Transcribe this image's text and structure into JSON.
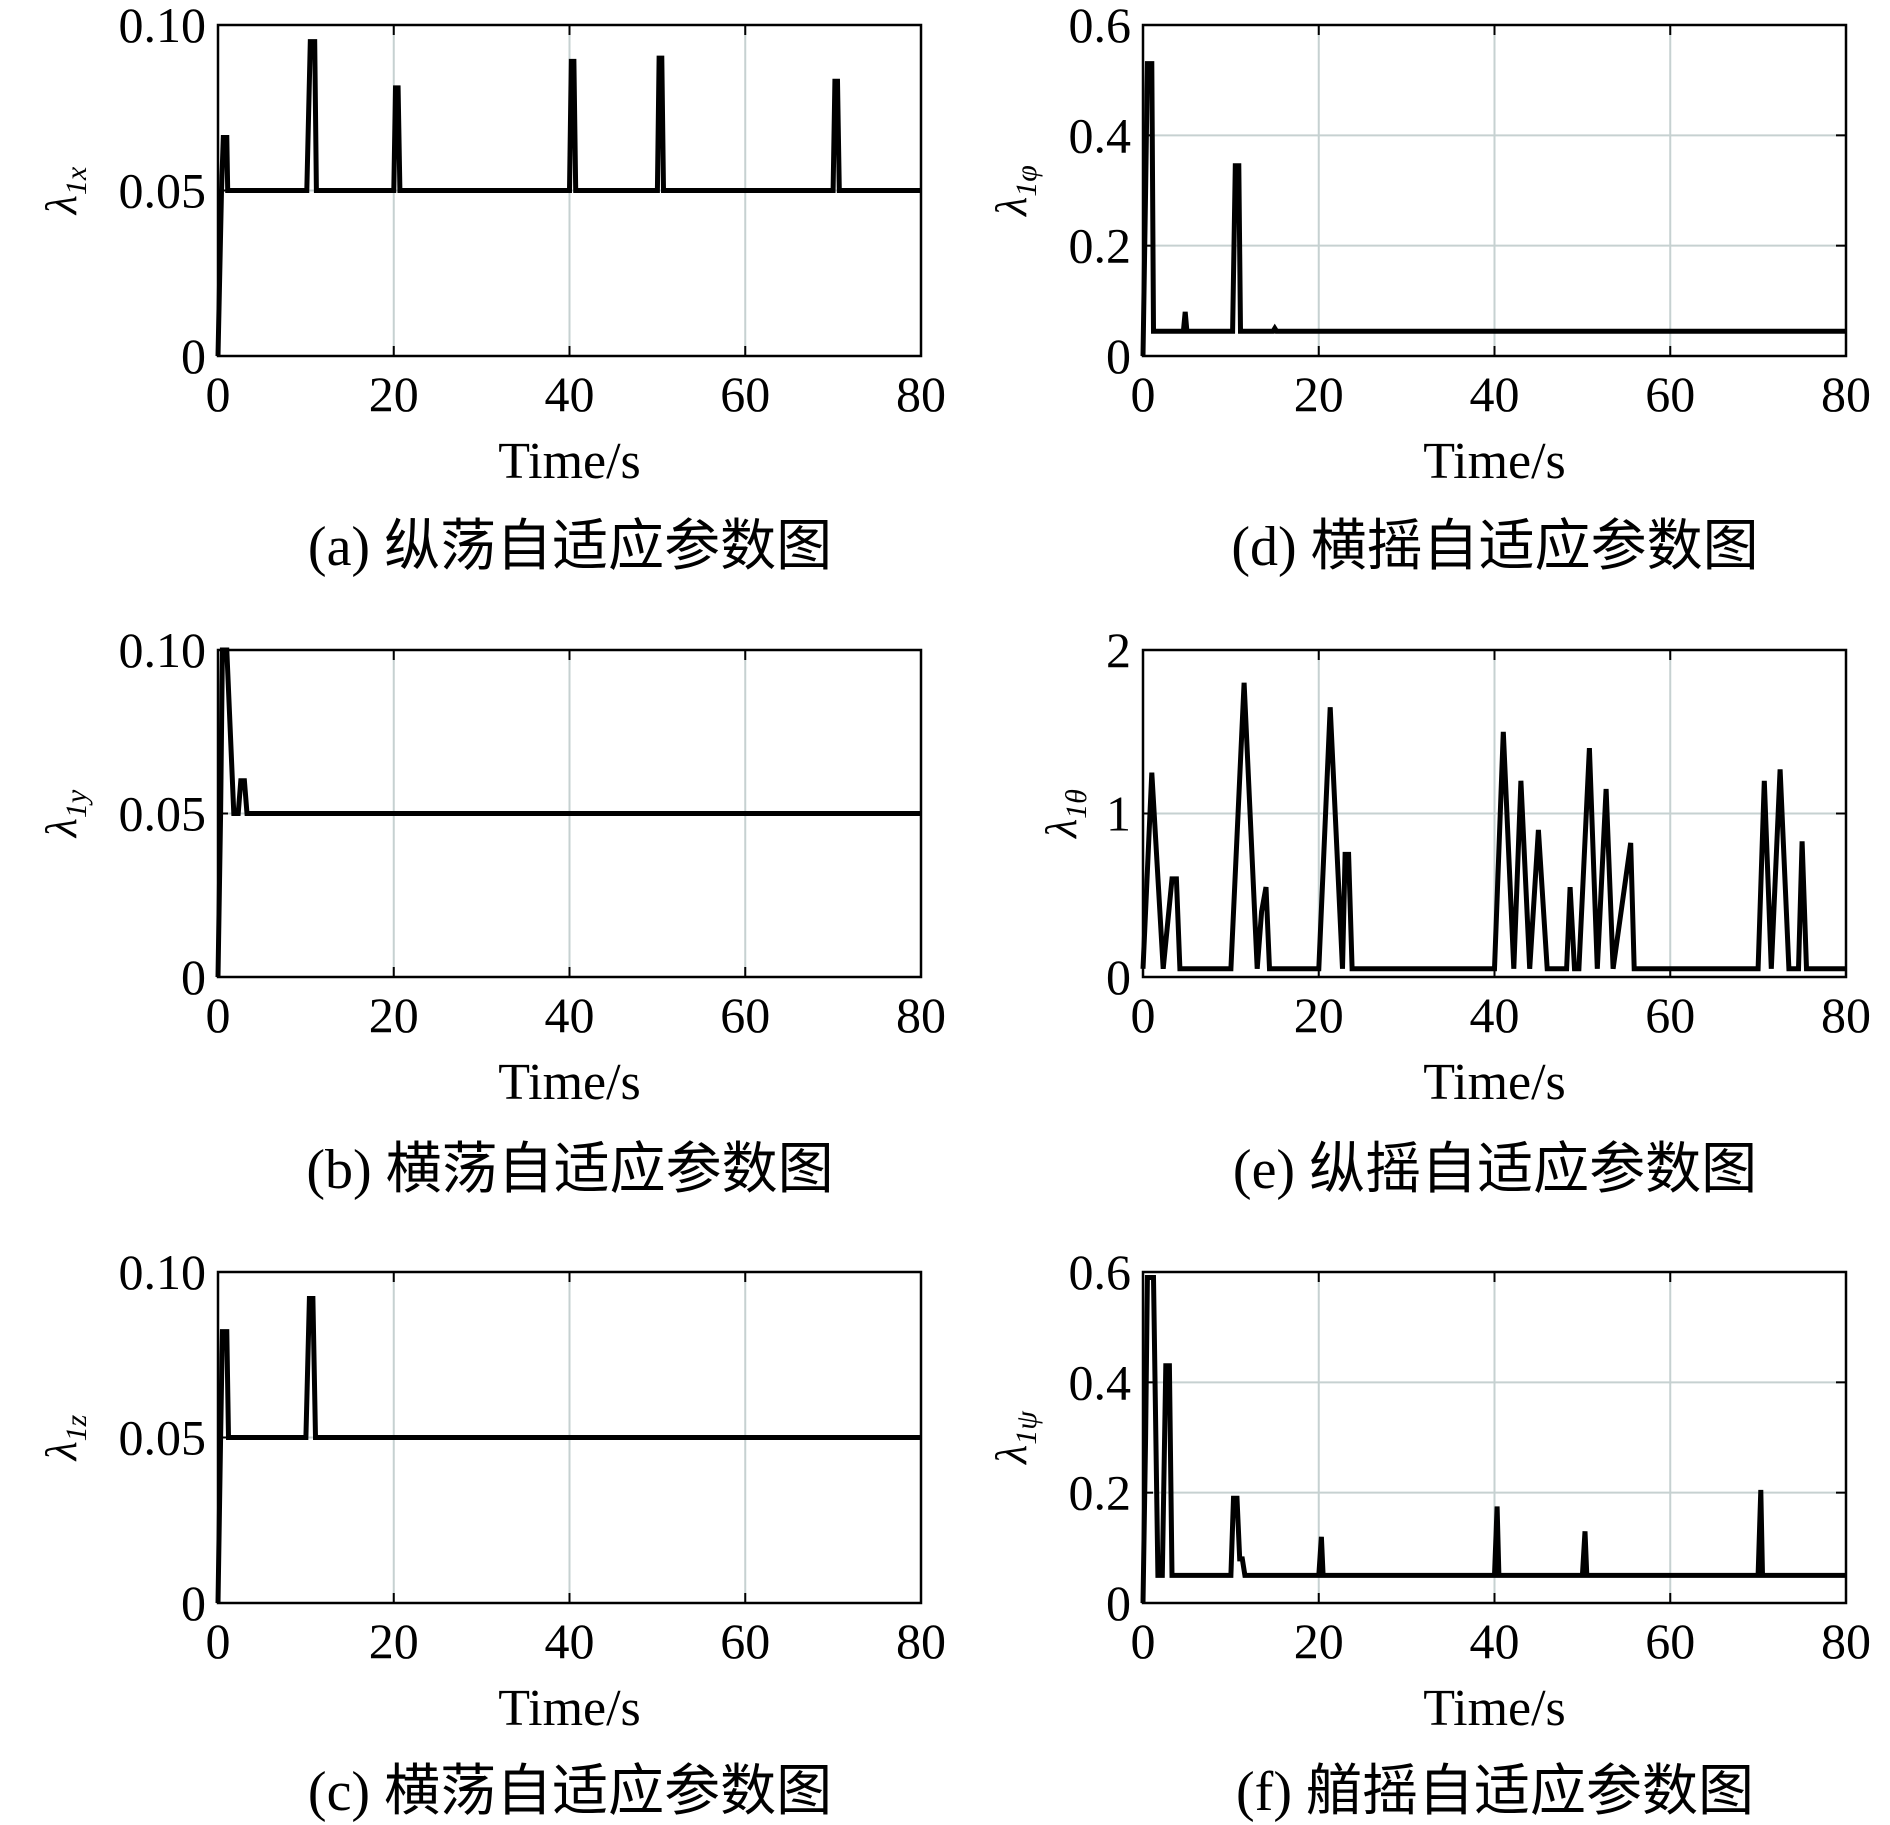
{
  "chart_data": [
    {
      "type": "line",
      "title": "",
      "caption": "(a) 纵荡自适应参数图",
      "xlabel": "Time/s",
      "ylabel_main": "λ",
      "ylabel_sub": "1x",
      "xlim": [
        0,
        80
      ],
      "ylim": [
        0,
        0.1
      ],
      "xticks": [
        0,
        20,
        40,
        60,
        80
      ],
      "xtick_labels": [
        "0",
        "20",
        "40",
        "60",
        "80"
      ],
      "yticks": [
        0,
        0.05,
        0.1
      ],
      "ytick_labels": [
        "0",
        "0.05",
        "0.10"
      ],
      "grid": true,
      "series": [
        {
          "name": "λ1x",
          "x": [
            0,
            0.4,
            0.6,
            1.0,
            1.1,
            10.1,
            10.5,
            11.0,
            11.2,
            20.0,
            20.2,
            20.5,
            20.7,
            40.0,
            40.2,
            40.5,
            40.7,
            50.0,
            50.2,
            50.5,
            50.7,
            70.0,
            70.2,
            70.5,
            70.7,
            80
          ],
          "y": [
            0,
            0.05,
            0.066,
            0.066,
            0.05,
            0.05,
            0.095,
            0.095,
            0.05,
            0.05,
            0.081,
            0.081,
            0.05,
            0.05,
            0.089,
            0.089,
            0.05,
            0.05,
            0.09,
            0.09,
            0.05,
            0.05,
            0.083,
            0.083,
            0.05,
            0.05
          ]
        }
      ]
    },
    {
      "type": "line",
      "title": "",
      "caption": "(d) 横摇自适应参数图",
      "xlabel": "Time/s",
      "ylabel_main": "λ",
      "ylabel_sub": "1φ",
      "xlim": [
        0,
        80
      ],
      "ylim": [
        0,
        0.6
      ],
      "xticks": [
        0,
        20,
        40,
        60,
        80
      ],
      "xtick_labels": [
        "0",
        "20",
        "40",
        "60",
        "80"
      ],
      "yticks": [
        0,
        0.2,
        0.4,
        0.6
      ],
      "ytick_labels": [
        "0",
        "0.2",
        "0.4",
        "0.6"
      ],
      "grid": true,
      "series": [
        {
          "name": "λ1φ",
          "x": [
            0,
            0.3,
            0.5,
            1.0,
            1.2,
            4.6,
            4.8,
            5.0,
            10.2,
            10.5,
            10.9,
            11.1,
            14.8,
            15.0,
            15.2,
            80
          ],
          "y": [
            0,
            0.3,
            0.53,
            0.53,
            0.045,
            0.045,
            0.08,
            0.045,
            0.045,
            0.345,
            0.345,
            0.045,
            0.045,
            0.05,
            0.045,
            0.045
          ]
        }
      ]
    },
    {
      "type": "line",
      "title": "",
      "caption": "(b) 横荡自适应参数图",
      "xlabel": "Time/s",
      "ylabel_main": "λ",
      "ylabel_sub": "1y",
      "xlim": [
        0,
        80
      ],
      "ylim": [
        0,
        0.1
      ],
      "xticks": [
        0,
        20,
        40,
        60,
        80
      ],
      "xtick_labels": [
        "0",
        "20",
        "40",
        "60",
        "80"
      ],
      "yticks": [
        0,
        0.05,
        0.1
      ],
      "ytick_labels": [
        "0",
        "0.05",
        "0.10"
      ],
      "grid": true,
      "series": [
        {
          "name": "λ1y",
          "x": [
            0,
            0.3,
            0.5,
            1.0,
            1.8,
            2.3,
            2.6,
            3.0,
            3.3,
            3.5,
            80
          ],
          "y": [
            0,
            0.05,
            0.1,
            0.1,
            0.05,
            0.05,
            0.06,
            0.06,
            0.05,
            0.05,
            0.05
          ]
        }
      ]
    },
    {
      "type": "line",
      "title": "",
      "caption": "(e) 纵摇自适应参数图",
      "xlabel": "Time/s",
      "ylabel_main": "λ",
      "ylabel_sub": "1θ",
      "xlim": [
        0,
        80
      ],
      "ylim": [
        0,
        2
      ],
      "xticks": [
        0,
        20,
        40,
        60,
        80
      ],
      "xtick_labels": [
        "0",
        "20",
        "40",
        "60",
        "80"
      ],
      "yticks": [
        0,
        1,
        2
      ],
      "ytick_labels": [
        "0",
        "1",
        "2"
      ],
      "grid": true,
      "series": [
        {
          "name": "λ1θ",
          "x": [
            0,
            1.0,
            2.3,
            3.3,
            3.8,
            4.2,
            10.0,
            11.5,
            13.0,
            13.5,
            14.0,
            14.4,
            20.0,
            21.3,
            22.7,
            23.0,
            23.4,
            23.8,
            40.0,
            41.0,
            42.2,
            43.0,
            44.0,
            45.0,
            46.0,
            48.2,
            48.6,
            49.1,
            49.6,
            50.8,
            51.7,
            52.7,
            53.5,
            55.5,
            55.9,
            70.0,
            70.7,
            71.5,
            72.5,
            73.5,
            74.6,
            75.0,
            75.5,
            80
          ],
          "y": [
            0.05,
            1.25,
            0.05,
            0.6,
            0.6,
            0.05,
            0.05,
            1.8,
            0.05,
            0.4,
            0.55,
            0.05,
            0.05,
            1.65,
            0.05,
            0.75,
            0.75,
            0.05,
            0.05,
            1.5,
            0.05,
            1.2,
            0.05,
            0.9,
            0.05,
            0.05,
            0.55,
            0.05,
            0.05,
            1.4,
            0.05,
            1.15,
            0.05,
            0.82,
            0.05,
            0.05,
            1.2,
            0.05,
            1.27,
            0.05,
            0.05,
            0.83,
            0.05,
            0.05
          ]
        }
      ]
    },
    {
      "type": "line",
      "title": "",
      "caption": "(c) 横荡自适应参数图",
      "xlabel": "Time/s",
      "ylabel_main": "λ",
      "ylabel_sub": "1z",
      "xlim": [
        0,
        80
      ],
      "ylim": [
        0,
        0.1
      ],
      "xticks": [
        0,
        20,
        40,
        60,
        80
      ],
      "xtick_labels": [
        "0",
        "20",
        "40",
        "60",
        "80"
      ],
      "yticks": [
        0,
        0.05,
        0.1
      ],
      "ytick_labels": [
        "0",
        "0.05",
        "0.10"
      ],
      "grid": true,
      "series": [
        {
          "name": "λ1z",
          "x": [
            0,
            0.3,
            0.5,
            1.0,
            1.2,
            10.0,
            10.4,
            10.8,
            11.1,
            80
          ],
          "y": [
            0,
            0.05,
            0.082,
            0.082,
            0.05,
            0.05,
            0.092,
            0.092,
            0.05,
            0.05
          ]
        }
      ]
    },
    {
      "type": "line",
      "title": "",
      "caption": "(f) 艏摇自适应参数图",
      "xlabel": "Time/s",
      "ylabel_main": "λ",
      "ylabel_sub": "1ψ",
      "xlim": [
        0,
        80
      ],
      "ylim": [
        0,
        0.6
      ],
      "xticks": [
        0,
        20,
        40,
        60,
        80
      ],
      "xtick_labels": [
        "0",
        "20",
        "40",
        "60",
        "80"
      ],
      "yticks": [
        0,
        0.2,
        0.4,
        0.6
      ],
      "ytick_labels": [
        "0",
        "0.2",
        "0.4",
        "0.6"
      ],
      "grid": true,
      "series": [
        {
          "name": "λ1ψ",
          "x": [
            0,
            0.3,
            0.5,
            1.2,
            1.7,
            2.2,
            2.6,
            3.0,
            3.3,
            10.0,
            10.3,
            10.7,
            11.0,
            11.3,
            11.6,
            20.0,
            20.3,
            20.5,
            40.0,
            40.3,
            40.5,
            50.0,
            50.3,
            50.5,
            70.0,
            70.3,
            70.5,
            80
          ],
          "y": [
            0,
            0.3,
            0.59,
            0.59,
            0.05,
            0.05,
            0.43,
            0.43,
            0.05,
            0.05,
            0.19,
            0.19,
            0.08,
            0.08,
            0.05,
            0.05,
            0.12,
            0.05,
            0.05,
            0.175,
            0.05,
            0.05,
            0.13,
            0.05,
            0.05,
            0.205,
            0.05,
            0.05
          ]
        }
      ]
    }
  ]
}
